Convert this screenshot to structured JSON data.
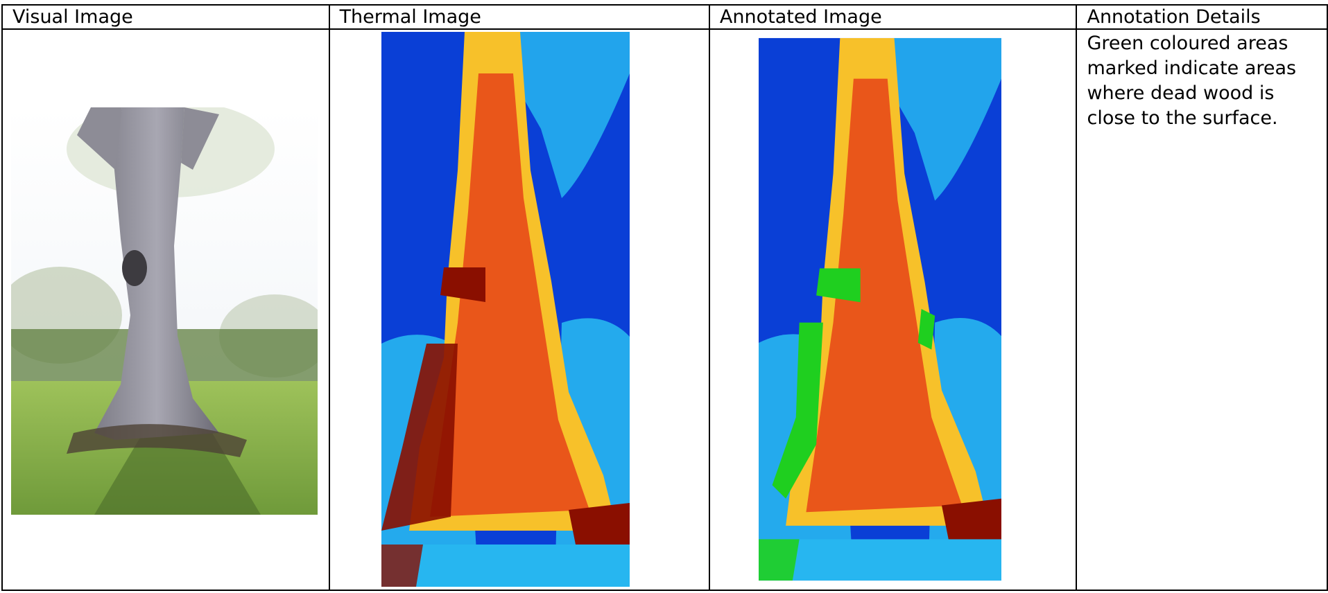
{
  "table": {
    "headers": {
      "visual": "Visual Image",
      "thermal": "Thermal Image",
      "annotated": "Annotated Image",
      "details": "Annotation Details"
    },
    "details_text": "Green coloured areas marked indicate areas where dead wood is close to the surface."
  },
  "images": {
    "visual": "photo of a large old tree trunk on grass with hedges in background",
    "thermal": "false-colour thermal image of the tree trunk",
    "annotated": "false-colour thermal image with green marked regions"
  },
  "colors": {
    "thermal_cold": "#0a3fd6",
    "thermal_cool": "#27b6f0",
    "thermal_warm": "#f7c12a",
    "thermal_hot": "#e9561a",
    "thermal_max": "#8a0f00",
    "annotation_green": "#1fcf1f"
  }
}
